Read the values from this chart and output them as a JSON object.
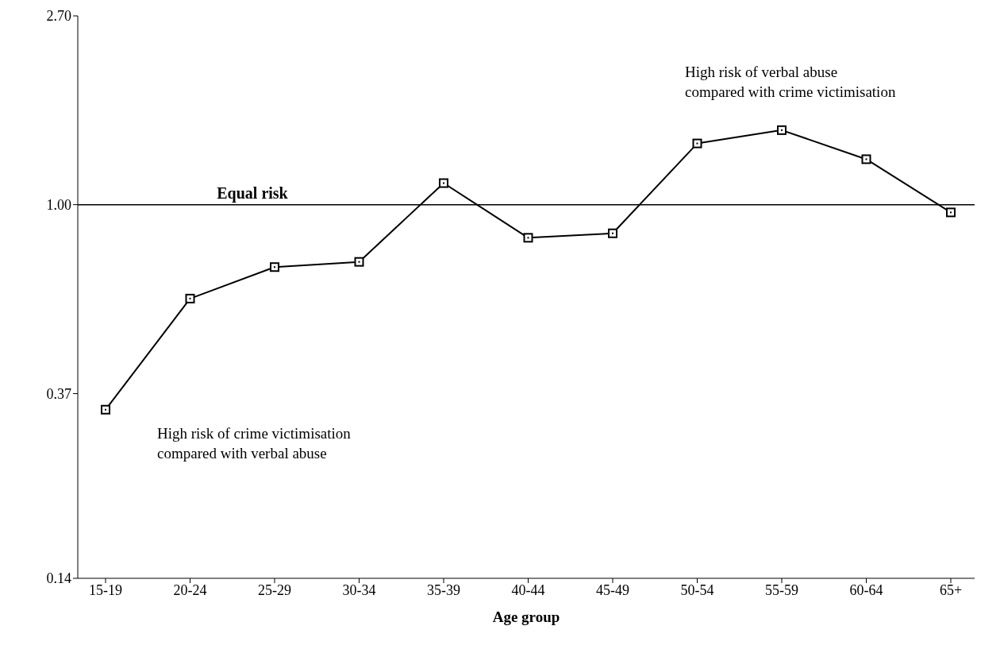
{
  "chart_data": {
    "type": "line",
    "xlabel": "Age group",
    "categories": [
      "15-19",
      "20-24",
      "25-29",
      "30-34",
      "35-39",
      "40-44",
      "45-49",
      "50-54",
      "55-59",
      "60-64",
      "65+"
    ],
    "series": [
      {
        "color": "#000000",
        "values": [
          0.34,
          0.61,
          0.72,
          0.74,
          1.12,
          0.84,
          0.86,
          1.38,
          1.48,
          1.27,
          0.96
        ]
      }
    ],
    "log": "y",
    "ylim": [
      0.14,
      2.7
    ],
    "yticks": [
      {
        "value": 0.14,
        "label": "0.14"
      },
      {
        "value": 0.37,
        "label": "0.37"
      },
      {
        "value": 1,
        "label": "1.00"
      },
      {
        "value": 2.7,
        "label": "2.70"
      }
    ],
    "ref_lines": [
      {
        "axis": "y",
        "value": 1,
        "label": "Equal risk",
        "color": "#000000"
      }
    ],
    "annotations": [
      "High risk of verbal abuse\ncompared with crime victimisation",
      "High risk of crime victimisation\ncompared with verbal abuse"
    ],
    "marker": "square",
    "grid": false,
    "legend": false
  }
}
